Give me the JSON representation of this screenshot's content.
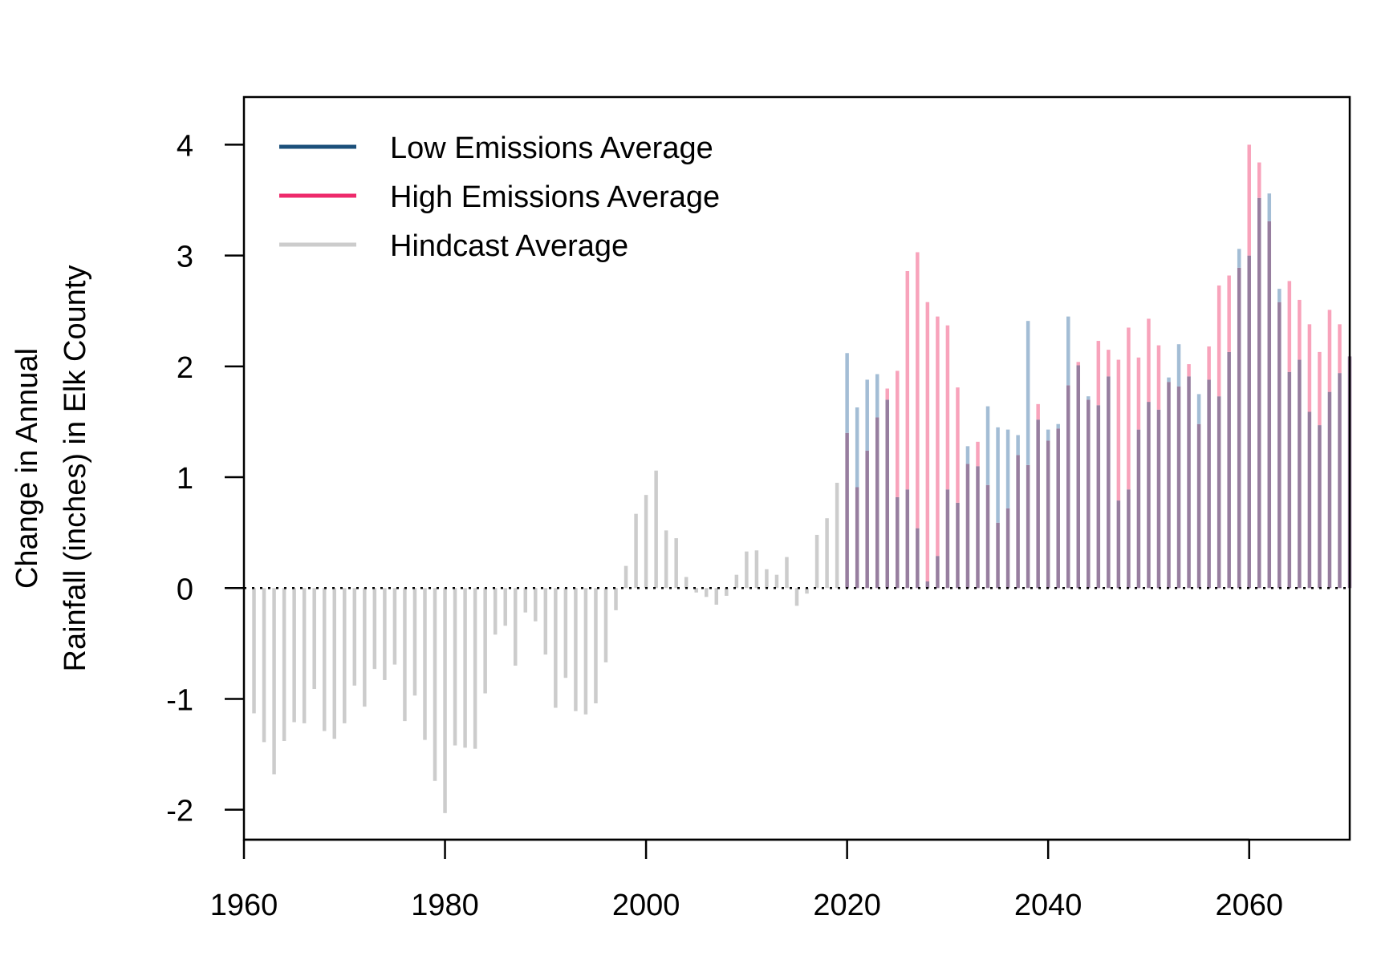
{
  "chart_data": {
    "type": "bar",
    "xlabel": "",
    "ylabel": [
      "Change in Annual",
      "Rainfall (inches) in Elk County"
    ],
    "xlim": [
      1960,
      2070
    ],
    "ylim": [
      -2.27,
      4.43
    ],
    "x_ticks": [
      1960,
      1980,
      2000,
      2020,
      2040,
      2060
    ],
    "y_ticks": [
      4,
      3,
      2,
      1,
      0,
      -1,
      -2
    ],
    "x_tick_labels": [
      "1960",
      "1980",
      "2000",
      "2020",
      "2040",
      "2060"
    ],
    "y_tick_labels": [
      "4",
      "3",
      "2",
      "1",
      "0",
      "-1",
      "-2"
    ],
    "grid": false,
    "baseline": 0,
    "legend_position": "top-left",
    "colors": {
      "low": "#1b4f7a",
      "high": "#ee2a6b",
      "hindcast": "#cccccc",
      "low_bar": "#a3bdd5",
      "high_bar": "#f8a3bb",
      "overlap_bar": "#977e9f"
    },
    "legend": [
      {
        "label": "Low Emissions Average",
        "color": "#1b4f7a"
      },
      {
        "label": "High Emissions Average",
        "color": "#ee2a6b"
      },
      {
        "label": "Hindcast Average",
        "color": "#cccccc"
      }
    ],
    "series": [
      {
        "name": "Hindcast Average",
        "x": [
          1961,
          1962,
          1963,
          1964,
          1965,
          1966,
          1967,
          1968,
          1969,
          1970,
          1971,
          1972,
          1973,
          1974,
          1975,
          1976,
          1977,
          1978,
          1979,
          1980,
          1981,
          1982,
          1983,
          1984,
          1985,
          1986,
          1987,
          1988,
          1989,
          1990,
          1991,
          1992,
          1993,
          1994,
          1995,
          1996,
          1997,
          1998,
          1999,
          2000,
          2001,
          2002,
          2003,
          2004,
          2005,
          2006,
          2007,
          2008,
          2009,
          2010,
          2011,
          2012,
          2013,
          2014,
          2015,
          2016,
          2017,
          2018,
          2019
        ],
        "values": [
          -1.13,
          -1.39,
          -1.68,
          -1.38,
          -1.21,
          -1.22,
          -0.91,
          -1.29,
          -1.36,
          -1.22,
          -0.88,
          -1.07,
          -0.73,
          -0.83,
          -0.69,
          -1.2,
          -0.97,
          -1.37,
          -1.74,
          -2.03,
          -1.42,
          -1.44,
          -1.45,
          -0.95,
          -0.42,
          -0.34,
          -0.7,
          -0.22,
          -0.3,
          -0.6,
          -1.08,
          -0.81,
          -1.11,
          -1.14,
          -1.04,
          -0.67,
          -0.2,
          0.2,
          0.67,
          0.84,
          1.06,
          0.52,
          0.45,
          0.1,
          -0.04,
          -0.08,
          -0.15,
          -0.07,
          0.12,
          0.33,
          0.34,
          0.17,
          0.12,
          0.28,
          -0.16,
          -0.05,
          0.48,
          0.63,
          0.95
        ]
      },
      {
        "name": "Low Emissions Average",
        "x": [
          2020,
          2021,
          2022,
          2023,
          2024,
          2025,
          2026,
          2027,
          2028,
          2029,
          2030,
          2031,
          2032,
          2033,
          2034,
          2035,
          2036,
          2037,
          2038,
          2039,
          2040,
          2041,
          2042,
          2043,
          2044,
          2045,
          2046,
          2047,
          2048,
          2049,
          2050,
          2051,
          2052,
          2053,
          2054,
          2055,
          2056,
          2057,
          2058,
          2059,
          2060,
          2061,
          2062,
          2063,
          2064,
          2065,
          2066,
          2067,
          2068,
          2069,
          2070
        ],
        "values": [
          2.12,
          1.63,
          1.88,
          1.93,
          1.7,
          0.82,
          0.89,
          0.54,
          0.06,
          0.29,
          0.89,
          0.77,
          1.28,
          1.1,
          1.64,
          1.45,
          1.43,
          1.38,
          2.41,
          1.52,
          1.43,
          1.48,
          2.45,
          2.01,
          1.73,
          1.65,
          1.91,
          0.79,
          0.89,
          1.43,
          1.68,
          1.61,
          1.9,
          2.2,
          1.91,
          1.75,
          1.88,
          1.73,
          2.13,
          3.06,
          3.0,
          3.52,
          3.56,
          2.7,
          1.95,
          2.06,
          1.59,
          1.47,
          1.77,
          1.94,
          2.09
        ]
      },
      {
        "name": "High Emissions Average",
        "x": [
          2020,
          2021,
          2022,
          2023,
          2024,
          2025,
          2026,
          2027,
          2028,
          2029,
          2030,
          2031,
          2032,
          2033,
          2034,
          2035,
          2036,
          2037,
          2038,
          2039,
          2040,
          2041,
          2042,
          2043,
          2044,
          2045,
          2046,
          2047,
          2048,
          2049,
          2050,
          2051,
          2052,
          2053,
          2054,
          2055,
          2056,
          2057,
          2058,
          2059,
          2060,
          2061,
          2062,
          2063,
          2064,
          2065,
          2066,
          2067,
          2068,
          2069,
          2070
        ],
        "values": [
          1.4,
          0.91,
          1.24,
          1.54,
          1.8,
          1.96,
          2.86,
          3.03,
          2.58,
          2.45,
          2.37,
          1.81,
          1.12,
          1.32,
          0.93,
          0.59,
          0.72,
          1.2,
          1.11,
          1.66,
          1.33,
          1.44,
          1.83,
          2.04,
          1.7,
          2.23,
          2.15,
          2.06,
          2.35,
          2.08,
          2.43,
          2.19,
          1.86,
          1.82,
          2.02,
          1.48,
          2.18,
          2.73,
          2.82,
          2.89,
          4.0,
          3.84,
          3.31,
          2.58,
          2.77,
          2.6,
          2.38,
          2.13,
          2.51,
          2.38,
          2.09
        ]
      }
    ]
  }
}
